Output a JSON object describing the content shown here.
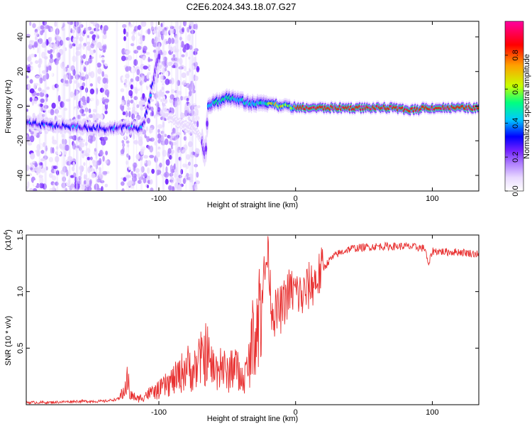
{
  "title": "C2E6.2024.343.18.07.G27",
  "chart_data": [
    {
      "type": "heatmap",
      "xlabel": "Height of straight line (km)",
      "ylabel": "Frequency (Hz)",
      "xlim": [
        -197,
        134
      ],
      "ylim": [
        -49,
        49
      ],
      "x_ticks": [
        -100,
        0,
        100
      ],
      "y_ticks": [
        -40,
        -20,
        0,
        20,
        40
      ],
      "x_tick_labels": [
        "-100",
        "0",
        "100"
      ],
      "y_tick_labels": [
        "-40",
        "-20",
        "0",
        "20",
        "40"
      ],
      "colorbar": {
        "label": "Normalized spectral amplitude",
        "range": [
          0,
          1
        ],
        "ticks": [
          0.0,
          0.2,
          0.4,
          0.6,
          0.8
        ],
        "tick_labels": [
          "0.0",
          "0.2",
          "0.4",
          "0.6",
          "0.8"
        ],
        "colormap": [
          "#ffffff",
          "#e8d8ff",
          "#b080ff",
          "#7020ff",
          "#0000ff",
          "#00c8ff",
          "#00ff80",
          "#c8ff00",
          "#ffa000",
          "#ff0000",
          "#ff00a0"
        ]
      },
      "ridge": {
        "x": [
          -197,
          -180,
          -160,
          -140,
          -125,
          -112,
          -108,
          -104,
          -100,
          -95,
          -85,
          -75,
          -69,
          -66,
          -64,
          -60,
          -55,
          -50,
          -45,
          -40,
          -35,
          -30,
          -25,
          -20,
          -15,
          -10,
          -5,
          0,
          5,
          10,
          20,
          30,
          40,
          50,
          60,
          70,
          80,
          90,
          92,
          95,
          100,
          110,
          120,
          134
        ],
        "y": [
          -10,
          -11,
          -12,
          -13,
          -12,
          -13,
          0,
          15,
          30,
          -5,
          -10,
          -12,
          -18,
          -30,
          0,
          2,
          3,
          5,
          4,
          3,
          2,
          1,
          2,
          2,
          1,
          0,
          0,
          -1,
          -1,
          -1,
          -1,
          -1,
          -1,
          -1,
          -1,
          -1,
          -2,
          -2,
          -1,
          -1,
          -1,
          -1,
          -1,
          -1
        ]
      }
    },
    {
      "type": "line",
      "xlabel": "Height of straight line (km)",
      "ylabel": "SNR (10 * v/v)",
      "y_multiplier": "(x10^4)",
      "xlim": [
        -197,
        134
      ],
      "ylim": [
        0,
        1.5
      ],
      "x_ticks": [
        -100,
        0,
        100
      ],
      "y_ticks": [
        0.5,
        1.0,
        1.5
      ],
      "x_tick_labels": [
        "-100",
        "0",
        "100"
      ],
      "y_tick_labels": [
        "0.5",
        "1.0",
        "1.5"
      ],
      "color": "#e83030",
      "series": [
        {
          "x": [
            -197,
            -180,
            -160,
            -140,
            -130,
            -125,
            -123,
            -121,
            -115,
            -110,
            -100,
            -90,
            -85,
            -80,
            -75,
            -70,
            -65,
            -62,
            -58,
            -55,
            -50,
            -45,
            -40,
            -35,
            -32,
            -28,
            -25,
            -22,
            -20,
            -18,
            -15,
            -10,
            -5,
            0,
            5,
            10,
            15,
            20,
            25,
            30,
            40,
            50,
            60,
            70,
            80,
            90,
            95,
            97,
            100,
            110,
            120,
            134
          ],
          "y": [
            0.02,
            0.02,
            0.03,
            0.03,
            0.05,
            0.15,
            0.28,
            0.1,
            0.06,
            0.1,
            0.15,
            0.25,
            0.3,
            0.4,
            0.35,
            0.45,
            0.55,
            0.4,
            0.35,
            0.45,
            0.3,
            0.45,
            0.25,
            0.35,
            0.65,
            0.9,
            1.0,
            1.2,
            1.4,
            0.9,
            0.8,
            0.85,
            1.0,
            1.0,
            0.95,
            1.05,
            1.1,
            1.2,
            1.28,
            1.33,
            1.38,
            1.39,
            1.4,
            1.4,
            1.4,
            1.39,
            1.38,
            1.22,
            1.36,
            1.35,
            1.35,
            1.33
          ]
        }
      ]
    }
  ]
}
